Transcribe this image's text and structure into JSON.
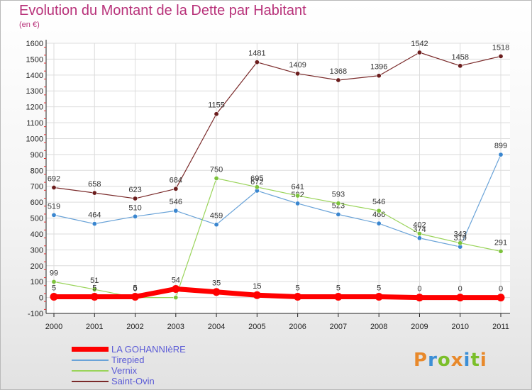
{
  "title": "Evolution du Montant de la Dette par Habitant",
  "unit": "(en €)",
  "logo": {
    "text": "Proxiti",
    "colors": [
      "#e8892b",
      "#3c8fd6",
      "#7bbf2a",
      "#e8892b",
      "#3c8fd6",
      "#7bbf2a",
      "#e8892b"
    ]
  },
  "chart_data": {
    "type": "line",
    "x": [
      "2000",
      "2001",
      "2002",
      "2003",
      "2004",
      "2005",
      "2006",
      "2007",
      "2008",
      "2009",
      "2010",
      "2011"
    ],
    "ylim": [
      -100,
      1600
    ],
    "yticks": [
      "-100",
      "0",
      "100",
      "200",
      "300",
      "400",
      "500",
      "600",
      "700",
      "800",
      "900",
      "1000",
      "1100",
      "1200",
      "1300",
      "1400",
      "1500",
      "1600"
    ],
    "grid": true,
    "legend": "bottom-left",
    "series": [
      {
        "name": "Saint-Ovin",
        "color": "#7a2a2a",
        "marker": "#6b1d1d",
        "width": 1.2,
        "values": [
          692,
          658,
          623,
          684,
          1155,
          1481,
          1409,
          1368,
          1396,
          1542,
          1458,
          1518
        ],
        "labels": [
          "692",
          "658",
          "623",
          "684",
          "1155",
          "1481",
          "1409",
          "1368",
          "1396",
          "1542",
          "1458",
          "1518"
        ]
      },
      {
        "name": "Tirepied",
        "color": "#6aa3d8",
        "marker": "#3a86cf",
        "width": 1.2,
        "values": [
          519,
          464,
          510,
          546,
          459,
          672,
          592,
          523,
          466,
          374,
          319,
          899
        ],
        "labels": [
          "519",
          "464",
          "510",
          "546",
          "459",
          "672",
          "592",
          "523",
          "466",
          "374",
          "319",
          "899"
        ]
      },
      {
        "name": "Vernix",
        "color": "#9ad45a",
        "marker": "#7cc23c",
        "width": 1.2,
        "values": [
          99,
          51,
          0,
          0,
          750,
          695,
          641,
          593,
          546,
          402,
          343,
          291
        ],
        "labels": [
          "99",
          "51",
          "0",
          "",
          "750",
          "695",
          "641",
          "593",
          "546",
          "402",
          "343",
          "291"
        ]
      },
      {
        "name": "LA GOHANNIèRE",
        "color": "#ff0000",
        "marker": "#ff0000",
        "width": 7,
        "values": [
          5,
          5,
          5,
          54,
          35,
          15,
          5,
          5,
          5,
          0,
          0,
          0
        ],
        "labels": [
          "5",
          "5",
          "5",
          "54",
          "35",
          "15",
          "5",
          "5",
          "5",
          "0",
          "0",
          "0"
        ]
      }
    ],
    "legend_order": [
      "LA GOHANNIèRE",
      "Tirepied",
      "Vernix",
      "Saint-Ovin"
    ]
  }
}
